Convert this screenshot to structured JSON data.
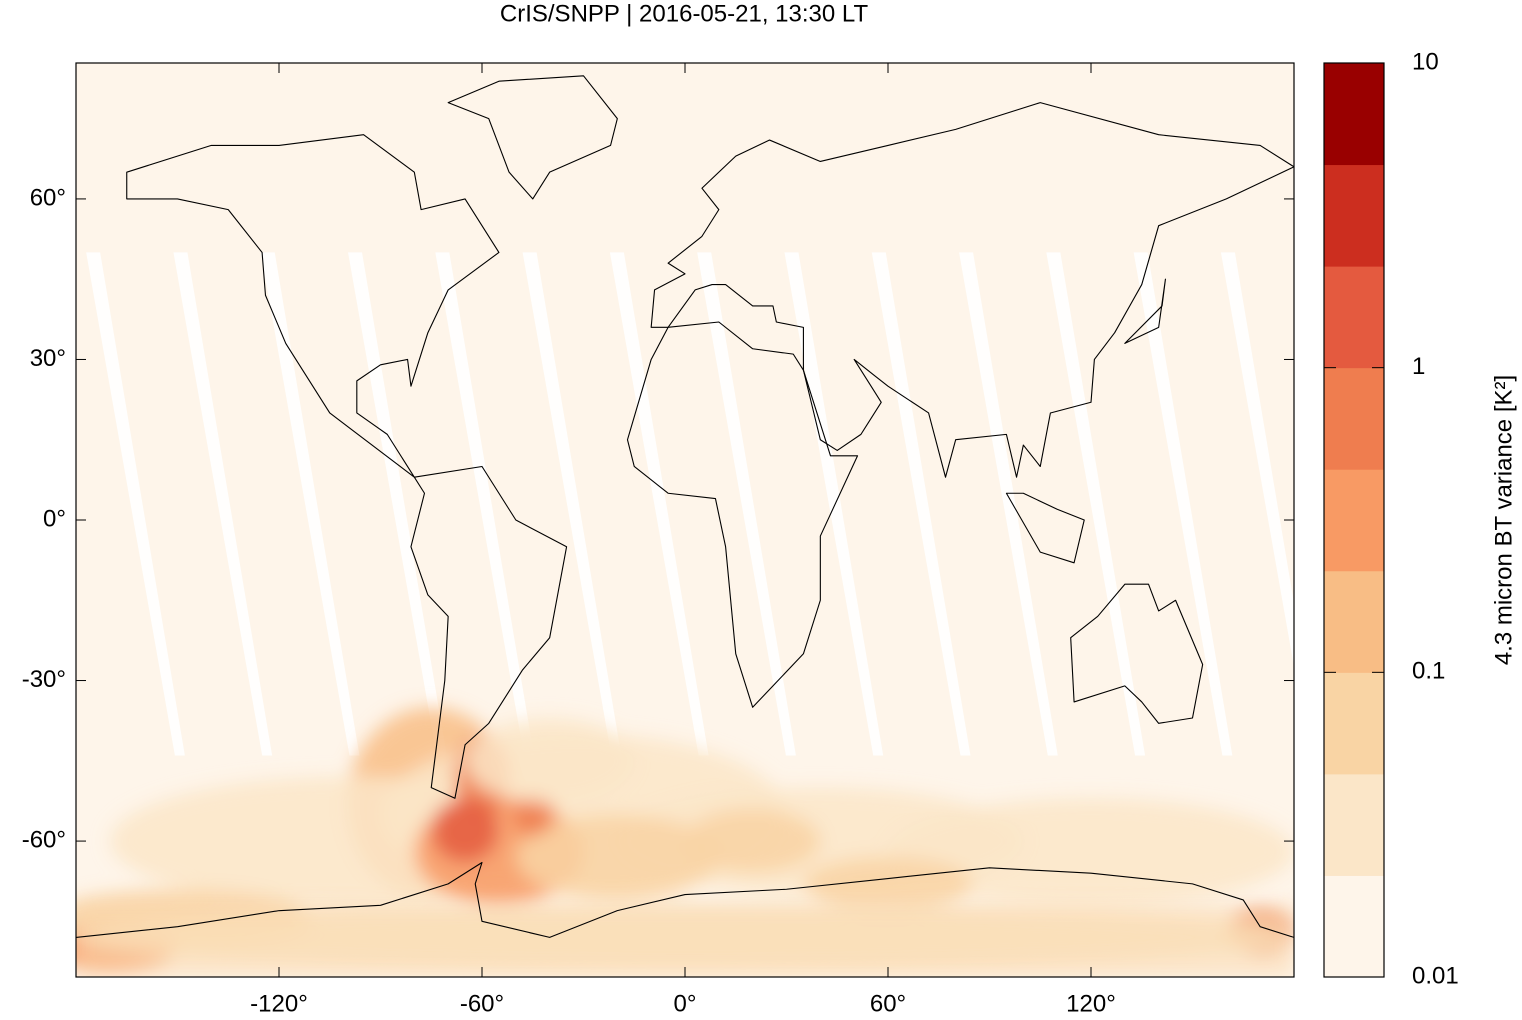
{
  "chart_data": {
    "type": "map",
    "title": "CrIS/SNPP | 2016-05-21, 13:30 LT",
    "xlim": [
      -180,
      180
    ],
    "ylim": [
      -85.4,
      85.4
    ],
    "xticks": [
      {
        "value": -120,
        "label": "-120°"
      },
      {
        "value": -60,
        "label": "-60°"
      },
      {
        "value": 0,
        "label": "0°"
      },
      {
        "value": 60,
        "label": "60°"
      },
      {
        "value": 120,
        "label": "120°"
      }
    ],
    "yticks": [
      {
        "value": -60,
        "label": "-60°"
      },
      {
        "value": -30,
        "label": "-30°"
      },
      {
        "value": 0,
        "label": "0°"
      },
      {
        "value": 30,
        "label": "30°"
      },
      {
        "value": 60,
        "label": "60°"
      }
    ],
    "background_color": "#fef5ea",
    "colorbar": {
      "label": "4.3 micron BT variance [K²]",
      "scale": "log",
      "lim": [
        0.01,
        10
      ],
      "ticks": [
        0.01,
        0.1,
        1,
        10
      ],
      "colors": [
        "#fef5ea",
        "#fbe6c8",
        "#f9d4a4",
        "#f8bd85",
        "#f89a64",
        "#ef7d4f",
        "#e45a3f",
        "#cc2e1f",
        "#990000"
      ]
    }
  }
}
